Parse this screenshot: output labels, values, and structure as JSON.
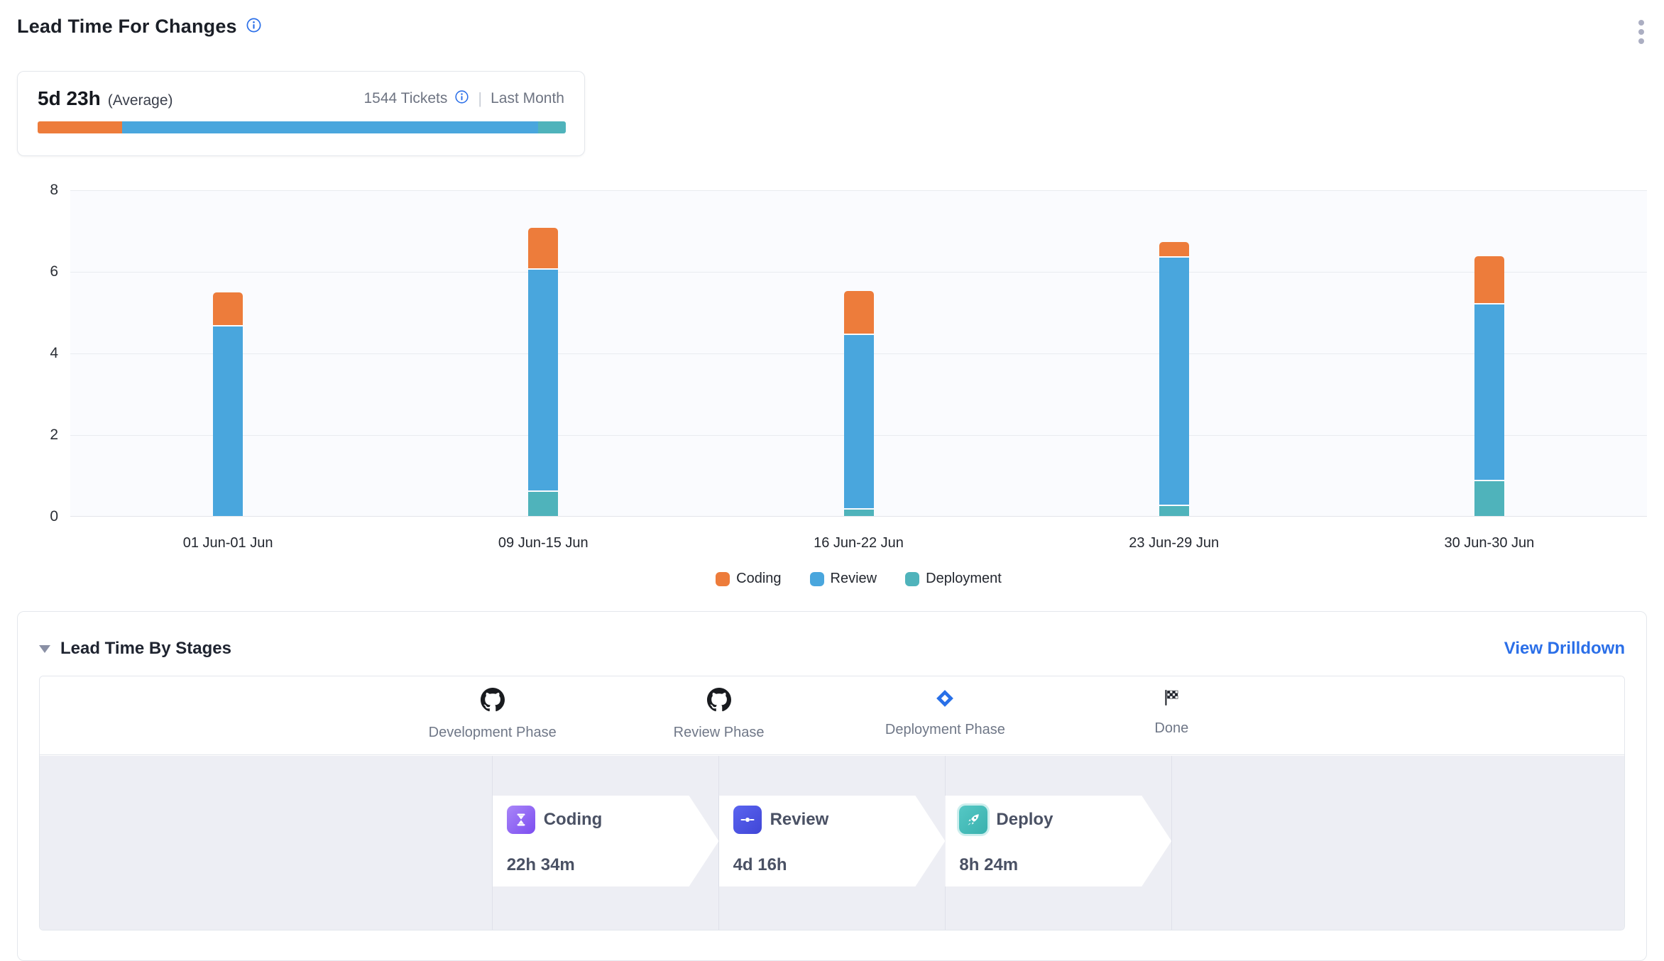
{
  "header": {
    "title": "Lead Time For Changes"
  },
  "summary": {
    "value": "5d 23h",
    "value_suffix": "(Average)",
    "tickets": "1544 Tickets",
    "separator": "|",
    "period": "Last Month",
    "bar_segments": [
      {
        "name": "Coding",
        "color": "#ED7C3B",
        "percent": 16.0
      },
      {
        "name": "Review",
        "color": "#49A6DD",
        "percent": 78.7
      },
      {
        "name": "Deployment",
        "color": "#4FB3BB",
        "percent": 5.3
      }
    ]
  },
  "chart_data": {
    "type": "bar",
    "stacked": true,
    "title": "",
    "xlabel": "",
    "ylabel": "",
    "ylim": [
      0,
      8
    ],
    "yticks": [
      0,
      2,
      4,
      6,
      8
    ],
    "grid": true,
    "legend_position": "bottom",
    "categories": [
      "01 Jun-01 Jun",
      "09 Jun-15 Jun",
      "16 Jun-22 Jun",
      "23 Jun-29 Jun",
      "30 Jun-30 Jun"
    ],
    "series": [
      {
        "name": "Coding",
        "color": "#ED7C3B",
        "values": [
          0.8,
          1.0,
          1.05,
          0.35,
          1.15
        ]
      },
      {
        "name": "Review",
        "color": "#49A6DD",
        "values": [
          4.65,
          5.4,
          4.25,
          6.05,
          4.3
        ]
      },
      {
        "name": "Deployment",
        "color": "#4FB3BB",
        "values": [
          0,
          0.6,
          0.15,
          0.25,
          0.85
        ]
      }
    ],
    "stack_order_top_to_bottom": [
      "Coding",
      "Review",
      "Deployment"
    ]
  },
  "stages_panel": {
    "title": "Lead Time By Stages",
    "drilldown_label": "View Drilldown",
    "phases": [
      {
        "label": "Development Phase",
        "icon": "github-icon"
      },
      {
        "label": "Review Phase",
        "icon": "github-icon"
      },
      {
        "label": "Deployment Phase",
        "icon": "diamond-icon"
      },
      {
        "label": "Done",
        "icon": "checkered-flag-icon"
      }
    ],
    "stages": [
      {
        "name": "Coding",
        "duration": "22h 34m",
        "icon": "hourglass-icon",
        "color_a": "#a986f8",
        "color_b": "#7c4df0"
      },
      {
        "name": "Review",
        "duration": "4d 16h",
        "icon": "commit-icon",
        "color_a": "#5a64f0",
        "color_b": "#4046d6"
      },
      {
        "name": "Deploy",
        "duration": "8h 24m",
        "icon": "rocket-icon",
        "color_a": "#55c8c5",
        "color_b": "#39b1ae"
      }
    ],
    "accent_blue": "#2970E8"
  }
}
